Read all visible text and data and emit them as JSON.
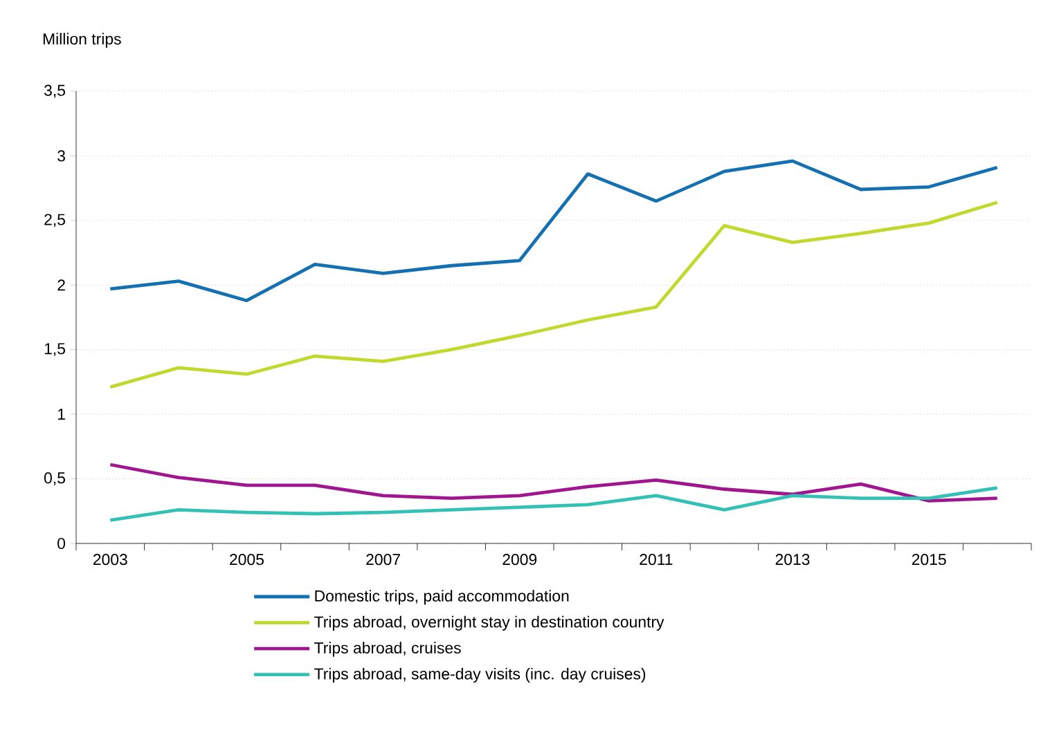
{
  "chart_data": {
    "type": "line",
    "ylabel": "Million trips",
    "categories": [
      "2003",
      null,
      "2005",
      null,
      "2007",
      null,
      "2009",
      null,
      "2011",
      null,
      "2013",
      null,
      "2015",
      null
    ],
    "ylim": [
      0,
      3.5
    ],
    "yticks": [
      0,
      {
        "value": 0.5,
        "label": "0,5"
      },
      1,
      {
        "value": 1.5,
        "label": "1,5"
      },
      2,
      {
        "value": 2.5,
        "label": "2,5"
      },
      3,
      {
        "value": 3.5,
        "label": "3,5"
      }
    ],
    "grid": "y",
    "legend": "bottom",
    "marker": "none",
    "line_style": "solid",
    "series": [
      {
        "name": "Domestic trips, paid accommodation",
        "color": "#1470b0",
        "values": [
          1.97,
          2.03,
          1.88,
          2.16,
          2.09,
          2.15,
          2.19,
          2.86,
          2.65,
          2.88,
          2.96,
          2.74,
          2.76,
          2.91
        ]
      },
      {
        "name": "Trips abroad, overnight stay in destination country",
        "color": "#c3d82e",
        "values": [
          1.21,
          1.36,
          1.31,
          1.45,
          1.41,
          1.5,
          1.61,
          1.73,
          1.83,
          2.46,
          2.33,
          2.4,
          2.48,
          2.64
        ]
      },
      {
        "name": "Trips abroad, cruises",
        "color": "#a0168e",
        "values": [
          0.61,
          0.51,
          0.45,
          0.45,
          0.37,
          0.35,
          0.37,
          0.44,
          0.49,
          0.42,
          0.38,
          0.46,
          0.33,
          0.35
        ]
      },
      {
        "name": "Trips abroad, same-day visits (inc. day cruises)",
        "color": "#33c0b5",
        "values": [
          0.18,
          0.26,
          0.24,
          0.23,
          0.24,
          0.26,
          0.28,
          0.3,
          0.37,
          0.26,
          0.37,
          0.35,
          0.35,
          0.43
        ]
      }
    ]
  }
}
